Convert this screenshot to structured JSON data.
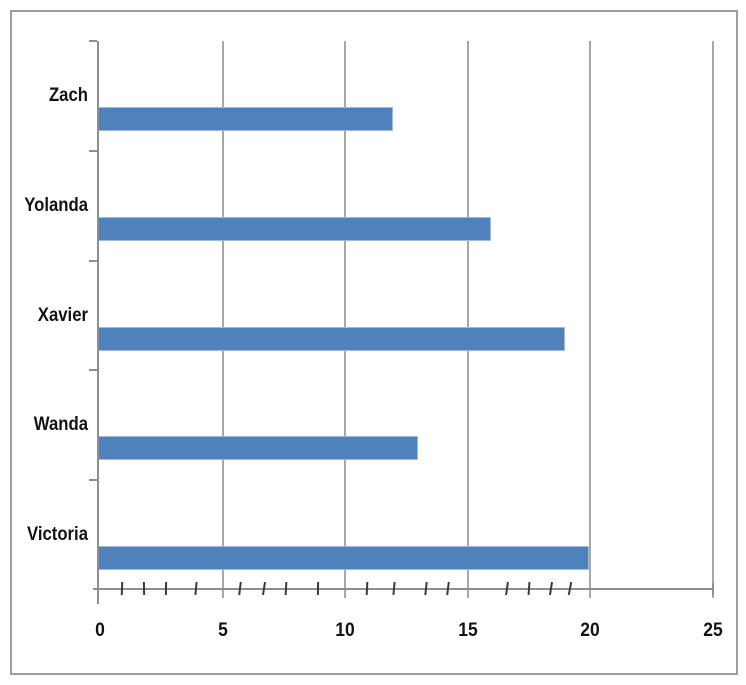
{
  "chart_data": {
    "type": "bar",
    "orientation": "horizontal",
    "title": "",
    "xlabel": "",
    "ylabel": "",
    "categories": [
      "Zach",
      "Yolanda",
      "Xavier",
      "Wanda",
      "Victoria"
    ],
    "values": [
      12,
      16,
      19,
      13,
      20
    ],
    "xlim": [
      0,
      25
    ],
    "x_ticks": [
      0,
      5,
      10,
      15,
      20,
      25
    ],
    "x_tick_labels": [
      "0",
      "5",
      "10",
      "15",
      "20",
      "25"
    ],
    "grid": "vertical-major-on",
    "legend": false,
    "category_order": "top-to-bottom",
    "hand_drawn_minor_ticks": [
      0.9,
      1.8,
      2.7,
      3.9,
      5.7,
      6.7,
      7.6,
      8.9,
      10.9,
      12.0,
      13.3,
      14.2,
      16.6,
      17.5,
      18.4,
      19.2
    ],
    "colors": {
      "bar_fill": "#4f81bd",
      "bar_edge": "#a0badc",
      "gridline": "#a8a8a8",
      "axis": "#8f8f8f",
      "frame_border": "#9e9e9e",
      "text": "#131313",
      "minor_tick_mark": "#3a3a3a",
      "background": "#ffffff"
    }
  }
}
